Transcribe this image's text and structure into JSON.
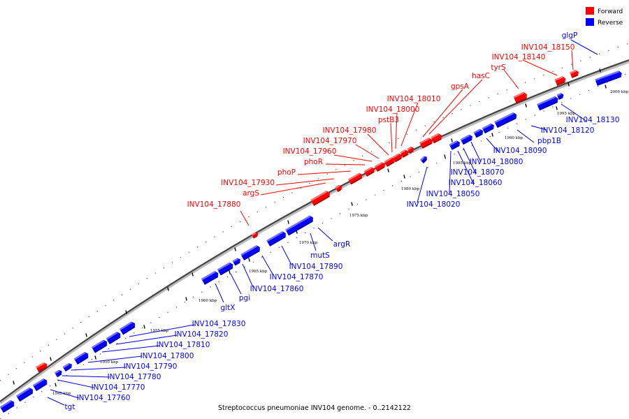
{
  "caption": "Streptococcus pneumoniae INV104 genome. - 0..2142122",
  "legend": [
    {
      "label": "Forward",
      "color": "#ff0000"
    },
    {
      "label": "Reverse",
      "color": "#0000ff"
    }
  ],
  "scale_labels": [
    "1945 kbp",
    "1950 kbp",
    "1955 kbp",
    "1960 kbp",
    "1965 kbp",
    "1970 kbp",
    "1975 kbp",
    "1980 kbp",
    "1985 kbp",
    "1990 kbp",
    "1995 kbp",
    "2000 kbp"
  ],
  "forward_genes": [
    "INV104_18150",
    "INV104_18140",
    "tyrS",
    "hasC",
    "gpsA",
    "INV104_18010",
    "INV104_18000",
    "pstB3",
    "INV104_17980",
    "INV104_17970",
    "INV104_17960",
    "phoR",
    "phoP",
    "INV104_17930",
    "argS",
    "INV104_17880"
  ],
  "reverse_genes": [
    "glgP",
    "INV104_18130",
    "INV104_18120",
    "pbp1B",
    "INV104_18090",
    "INV104_18080",
    "INV104_18070",
    "INV104_18060",
    "INV104_18050",
    "INV104_18020",
    "argR",
    "mutS",
    "INV104_17890",
    "INV104_17870",
    "INV104_17860",
    "pgi",
    "gltX",
    "INV104_17830",
    "INV104_17820",
    "INV104_17810",
    "INV104_17800",
    "INV104_17790",
    "INV104_17780",
    "INV104_17770",
    "INV104_17760",
    "tgt"
  ]
}
